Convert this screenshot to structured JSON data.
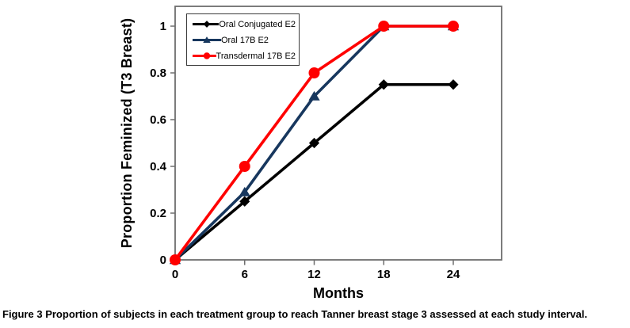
{
  "figure": {
    "caption_label": "Figure 3",
    "caption_text": "Proportion of subjects in each treatment group to reach Tanner breast stage 3 assessed at each study interval."
  },
  "chart_data": {
    "type": "line",
    "title": "",
    "xlabel": "Months",
    "ylabel": "Proportion Feminized (T3 Breast)",
    "x": [
      0,
      6,
      12,
      18,
      24
    ],
    "series": [
      {
        "name": "Oral Conjugated E2",
        "color": "#000000",
        "marker": "diamond",
        "values": [
          0,
          0.25,
          0.5,
          0.75,
          0.75
        ]
      },
      {
        "name": "Oral 17B E2",
        "color": "#17375E",
        "marker": "triangle",
        "values": [
          0,
          0.29,
          0.7,
          1,
          1
        ]
      },
      {
        "name": "Transdermal 17B E2",
        "color": "#FF0000",
        "marker": "circle",
        "values": [
          0,
          0.4,
          0.8,
          1,
          1
        ]
      }
    ],
    "xticks": [
      0,
      6,
      12,
      18,
      24
    ],
    "yticks": [
      0,
      0.2,
      0.4,
      0.6,
      0.8,
      1
    ],
    "ytick_labels": [
      "0",
      "0.2",
      "0.4",
      "0.6",
      "0.8",
      "1"
    ],
    "xlim": [
      0,
      28.2
    ],
    "ylim": [
      0,
      1.08
    ],
    "grid": false,
    "legend_position": "top-left-inside",
    "frame_color": "#6e6e6e",
    "axis_text_color": "#000000"
  }
}
